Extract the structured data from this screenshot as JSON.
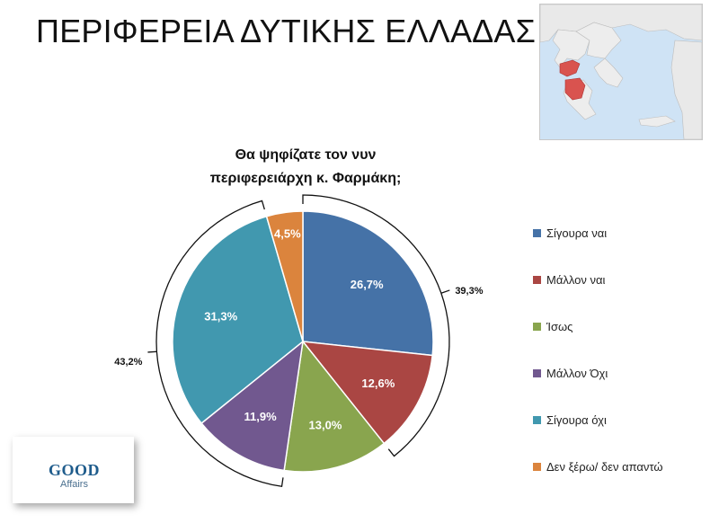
{
  "page": {
    "title": "ΠΕΡΙΦΕΡΕΙΑ ΔΥΤΙΚΗΣ ΕΛΛΑΔΑΣ"
  },
  "map": {
    "highlight_color": "#d9534f",
    "sea_color": "#cfe3f5",
    "land_color": "#eeeeee"
  },
  "chart_data": {
    "type": "pie",
    "title_lines": [
      "Θα ψηφίζατε τον νυν",
      "περιφερειάρχη κ. Φαρμάκη;"
    ],
    "slices": [
      {
        "label": "Σίγουρα ναι",
        "value": 26.7,
        "display": "26,7%",
        "color": "#4572a7"
      },
      {
        "label": "Μάλλον ναι",
        "value": 12.6,
        "display": "12,6%",
        "color": "#aa4643"
      },
      {
        "label": "Ίσως",
        "value": 13.0,
        "display": "13,0%",
        "color": "#89a54e"
      },
      {
        "label": "Μάλλον Όχι",
        "value": 11.9,
        "display": "11,9%",
        "color": "#71588f"
      },
      {
        "label": "Σίγουρα όχι",
        "value": 31.3,
        "display": "31,3%",
        "color": "#4198af"
      },
      {
        "label": "Δεν ξέρω/ δεν απαντώ",
        "value": 4.5,
        "display": "4,5%",
        "color": "#db843d"
      }
    ],
    "brackets": [
      {
        "display": "39,3%",
        "slices": [
          0,
          1
        ]
      },
      {
        "display": "43,2%",
        "slices": [
          3,
          4
        ]
      }
    ],
    "legend_position": "right"
  },
  "logo": {
    "main": "GOOD",
    "sub": "Affairs"
  }
}
